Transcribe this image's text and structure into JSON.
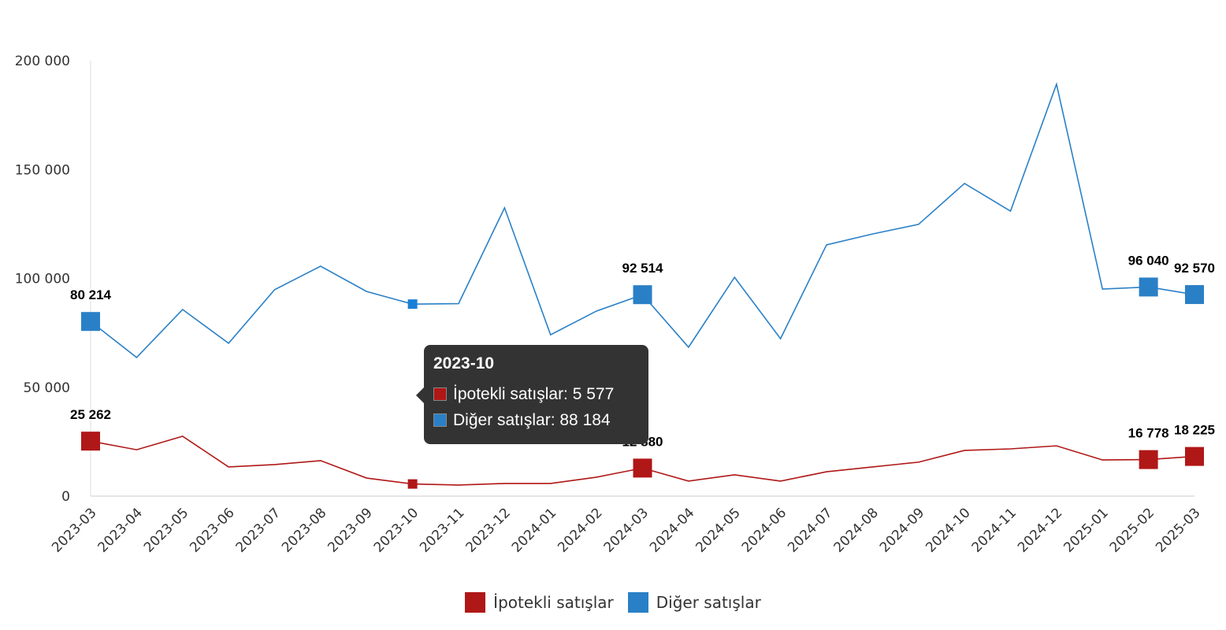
{
  "chart_data": {
    "type": "line",
    "title": "",
    "xlabel": "",
    "ylabel": "",
    "ylim": [
      0,
      200000
    ],
    "yticks": [
      0,
      50000,
      100000,
      150000,
      200000
    ],
    "ytick_labels": [
      "0",
      "50 000",
      "100 000",
      "150 000",
      "200 000"
    ],
    "grid": false,
    "legend_position": "bottom",
    "categories": [
      "2023-03",
      "2023-04",
      "2023-05",
      "2023-06",
      "2023-07",
      "2023-08",
      "2023-09",
      "2023-10",
      "2023-11",
      "2023-12",
      "2024-01",
      "2024-02",
      "2024-03",
      "2024-04",
      "2024-05",
      "2024-06",
      "2024-07",
      "2024-08",
      "2024-09",
      "2024-10",
      "2024-11",
      "2024-12",
      "2025-01",
      "2025-02",
      "2025-03"
    ],
    "series": [
      {
        "name": "İpotekli satışlar",
        "color": "#b01717",
        "values": [
          25262,
          21300,
          27500,
          13400,
          14500,
          16300,
          8300,
          5577,
          5100,
          5800,
          5800,
          8700,
          12880,
          6900,
          9800,
          6900,
          11200,
          13400,
          15600,
          21000,
          21700,
          23100,
          16600,
          16778,
          18225
        ],
        "labeled_indices": [
          0,
          12,
          23,
          24
        ],
        "data_labels": [
          "25 262",
          "12 880",
          "16 778",
          "18 225"
        ]
      },
      {
        "name": "Diğer satışlar",
        "color": "#2a80c6",
        "values": [
          80214,
          63700,
          85700,
          70200,
          94800,
          105600,
          94000,
          88184,
          88400,
          132400,
          74100,
          85000,
          92514,
          68400,
          100500,
          72300,
          115400,
          120400,
          124800,
          143600,
          130900,
          189200,
          95100,
          96040,
          92570
        ],
        "labeled_indices": [
          0,
          12,
          23,
          24
        ],
        "data_labels": [
          "80 214",
          "92 514",
          "96 040",
          "92 570"
        ]
      }
    ],
    "hovered_index": 7
  },
  "tooltip": {
    "title": "2023-10",
    "rows": [
      "İpotekli satışlar: 5 577",
      "Diğer satışlar: 88 184"
    ]
  },
  "legend": [
    "İpotekli satışlar",
    "Diğer satışlar"
  ]
}
